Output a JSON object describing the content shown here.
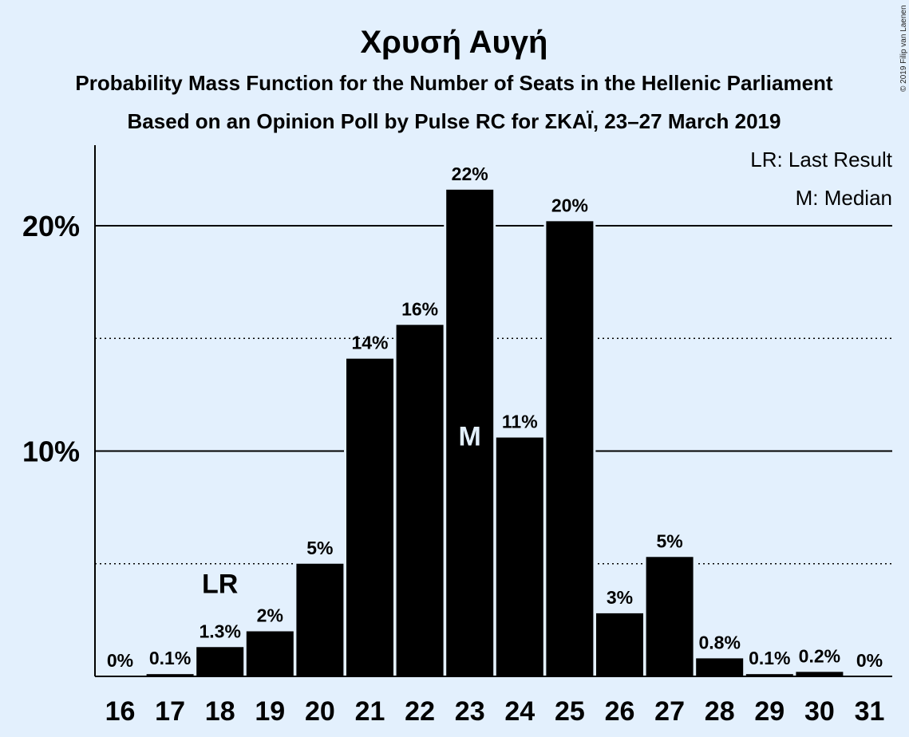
{
  "chart_data": {
    "type": "bar",
    "title": "Χρυσή Αυγή",
    "subtitle_line1": "Probability Mass Function for the Number of Seats in the Hellenic Parliament",
    "subtitle_line2": "Based on an Opinion Poll by Pulse RC for ΣΚΑΪ, 23–27 March 2019",
    "copyright": "© 2019 Filip van Laenen",
    "legend": [
      "LR: Last Result",
      "M: Median"
    ],
    "categories": [
      "16",
      "17",
      "18",
      "19",
      "20",
      "21",
      "22",
      "23",
      "24",
      "25",
      "26",
      "27",
      "28",
      "29",
      "30",
      "31"
    ],
    "values": [
      0,
      0.1,
      1.3,
      2.0,
      5.0,
      14.1,
      15.6,
      21.6,
      10.6,
      20.2,
      2.8,
      5.3,
      0.8,
      0.1,
      0.2,
      0
    ],
    "data_labels": [
      "0%",
      "0.1%",
      "1.3%",
      "2%",
      "5%",
      "14%",
      "16%",
      "22%",
      "11%",
      "20%",
      "3%",
      "5%",
      "0.8%",
      "0.1%",
      "0.2%",
      "0%"
    ],
    "ylim": [
      0,
      23.5
    ],
    "yticks": [
      {
        "value": 10,
        "label": "10%"
      },
      {
        "value": 20,
        "label": "20%"
      }
    ],
    "minor_gridlines": [
      5,
      15
    ],
    "last_result": {
      "category": "18",
      "label": "LR"
    },
    "median": {
      "category": "23",
      "label": "M"
    },
    "colors": {
      "bar": "#000000",
      "background": "#e3f0fd"
    },
    "xlabel": "",
    "ylabel": ""
  }
}
